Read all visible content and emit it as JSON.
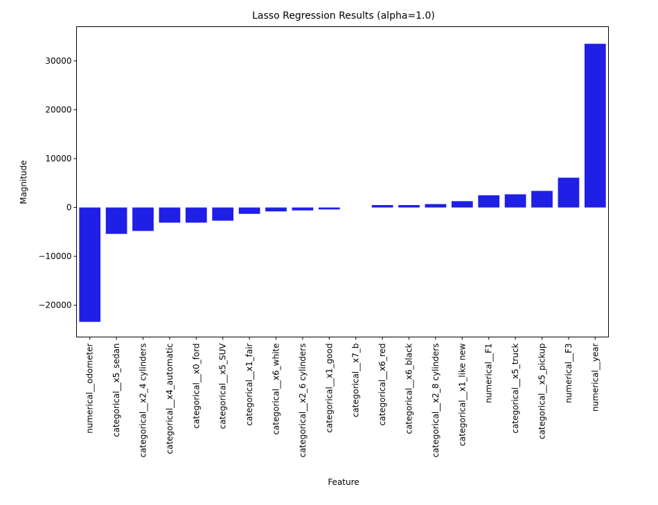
{
  "chart_data": {
    "type": "bar",
    "title": "Lasso Regression Results (alpha=1.0)",
    "xlabel": "Feature",
    "ylabel": "Magnitude",
    "ylim": [
      -26500,
      37000
    ],
    "yticks": [
      -20000,
      -10000,
      0,
      10000,
      20000,
      30000
    ],
    "ytick_labels": [
      "−20000",
      "−10000",
      "0",
      "10000",
      "20000",
      "30000"
    ],
    "grid": false,
    "legend": "none",
    "bar_color": "#1f1fe6",
    "categories": [
      "numerical__odometer",
      "categorical__x5_sedan",
      "categorical__x2_4 cylinders",
      "categorical__x4_automatic",
      "categorical__x0_ford",
      "categorical__x5_SUV",
      "categorical__x1_fair",
      "categorical__x6_white",
      "categorical__x2_6 cylinders",
      "categorical__x1_good",
      "categorical__x7_b",
      "categorical__x6_red",
      "categorical__x6_black",
      "categorical__x2_8 cylinders",
      "categorical__x1_like new",
      "numerical__F1",
      "categorical__x5_truck",
      "categorical__x5_pickup",
      "numerical__F3",
      "numerical__year"
    ],
    "values": [
      -23400,
      -5400,
      -4800,
      -3100,
      -3100,
      -2700,
      -1300,
      -800,
      -600,
      -400,
      0,
      500,
      500,
      700,
      1300,
      2500,
      2700,
      3400,
      6100,
      33500
    ]
  }
}
